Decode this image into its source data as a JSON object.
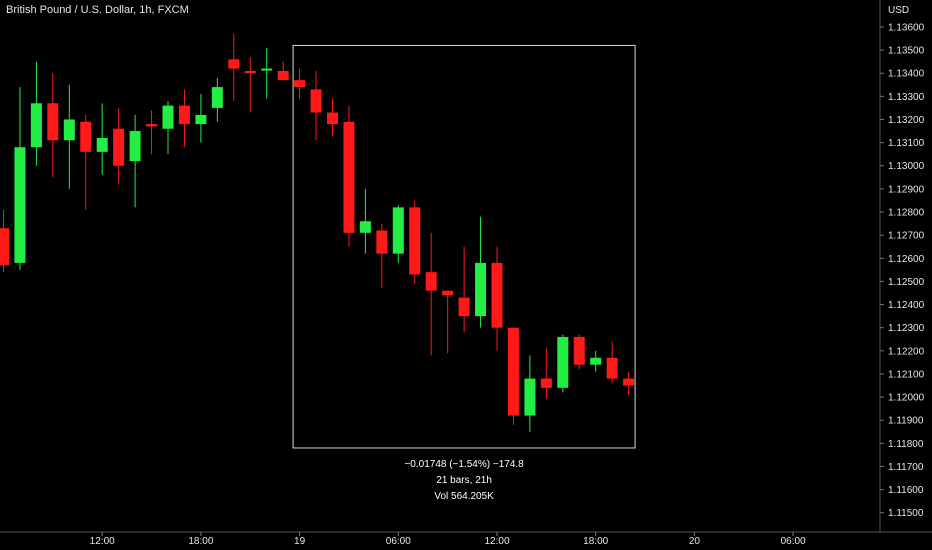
{
  "chart_title": "British Pound / U.S. Dollar, 1h, FXCM",
  "chart_data": {
    "type": "candlestick",
    "title": "British Pound / U.S. Dollar, 1h, FXCM",
    "currency_label": "USD",
    "colors": {
      "up": "#22ee44",
      "down": "#ff1a1a",
      "background": "#000000",
      "text": "#e6e6e6",
      "box": "#d9d9d9"
    },
    "y_ticks": [
      "1.13600",
      "1.13500",
      "1.13400",
      "1.13300",
      "1.13200",
      "1.13100",
      "1.13000",
      "1.12900",
      "1.12800",
      "1.12700",
      "1.12600",
      "1.12500",
      "1.12400",
      "1.12300",
      "1.12200",
      "1.12100",
      "1.12000",
      "1.11900",
      "1.11800",
      "1.11700",
      "1.11600",
      "1.11500"
    ],
    "ylim": [
      1.1146,
      1.1363
    ],
    "x_ticks": [
      {
        "label": "12:00",
        "index": 6
      },
      {
        "label": "18:00",
        "index": 12
      },
      {
        "label": "19",
        "index": 18
      },
      {
        "label": "06:00",
        "index": 24
      },
      {
        "label": "12:00",
        "index": 30
      },
      {
        "label": "18:00",
        "index": 36
      },
      {
        "label": "20",
        "index": 42
      },
      {
        "label": "06:00",
        "index": 48
      }
    ],
    "candles": [
      {
        "o": 1.1273,
        "h": 1.1281,
        "l": 1.1254,
        "c": 1.1257
      },
      {
        "o": 1.1258,
        "h": 1.1334,
        "l": 1.1255,
        "c": 1.1308
      },
      {
        "o": 1.1308,
        "h": 1.1345,
        "l": 1.13,
        "c": 1.1327
      },
      {
        "o": 1.1327,
        "h": 1.134,
        "l": 1.1295,
        "c": 1.1311
      },
      {
        "o": 1.1311,
        "h": 1.1335,
        "l": 1.129,
        "c": 1.132
      },
      {
        "o": 1.1319,
        "h": 1.1322,
        "l": 1.1281,
        "c": 1.1306
      },
      {
        "o": 1.1306,
        "h": 1.1327,
        "l": 1.1296,
        "c": 1.1312
      },
      {
        "o": 1.1316,
        "h": 1.1325,
        "l": 1.1292,
        "c": 1.13
      },
      {
        "o": 1.1302,
        "h": 1.1322,
        "l": 1.1282,
        "c": 1.1315
      },
      {
        "o": 1.1318,
        "h": 1.1324,
        "l": 1.1305,
        "c": 1.1317
      },
      {
        "o": 1.1316,
        "h": 1.1328,
        "l": 1.1305,
        "c": 1.1326
      },
      {
        "o": 1.1326,
        "h": 1.1333,
        "l": 1.1308,
        "c": 1.1318
      },
      {
        "o": 1.1318,
        "h": 1.1331,
        "l": 1.131,
        "c": 1.1322
      },
      {
        "o": 1.1325,
        "h": 1.1338,
        "l": 1.1319,
        "c": 1.1334
      },
      {
        "o": 1.1346,
        "h": 1.1357,
        "l": 1.1328,
        "c": 1.1342
      },
      {
        "o": 1.1341,
        "h": 1.1347,
        "l": 1.1323,
        "c": 1.134
      },
      {
        "o": 1.1342,
        "h": 1.1351,
        "l": 1.1329,
        "c": 1.1342
      },
      {
        "o": 1.1341,
        "h": 1.1345,
        "l": 1.1337,
        "c": 1.1337
      },
      {
        "o": 1.1337,
        "h": 1.1342,
        "l": 1.1329,
        "c": 1.1334
      },
      {
        "o": 1.1333,
        "h": 1.1341,
        "l": 1.1311,
        "c": 1.1323
      },
      {
        "o": 1.1323,
        "h": 1.1329,
        "l": 1.1313,
        "c": 1.1318
      },
      {
        "o": 1.1319,
        "h": 1.1326,
        "l": 1.1265,
        "c": 1.1271
      },
      {
        "o": 1.1271,
        "h": 1.129,
        "l": 1.1262,
        "c": 1.1276
      },
      {
        "o": 1.1272,
        "h": 1.1275,
        "l": 1.1247,
        "c": 1.1262
      },
      {
        "o": 1.1262,
        "h": 1.1283,
        "l": 1.1258,
        "c": 1.1282
      },
      {
        "o": 1.1282,
        "h": 1.1285,
        "l": 1.1249,
        "c": 1.1253
      },
      {
        "o": 1.1254,
        "h": 1.1271,
        "l": 1.1218,
        "c": 1.1246
      },
      {
        "o": 1.1246,
        "h": 1.1246,
        "l": 1.1219,
        "c": 1.1244
      },
      {
        "o": 1.1243,
        "h": 1.1265,
        "l": 1.1228,
        "c": 1.1235
      },
      {
        "o": 1.1235,
        "h": 1.1278,
        "l": 1.123,
        "c": 1.1258
      },
      {
        "o": 1.1258,
        "h": 1.1265,
        "l": 1.122,
        "c": 1.123
      },
      {
        "o": 1.123,
        "h": 1.123,
        "l": 1.1188,
        "c": 1.1192
      },
      {
        "o": 1.1192,
        "h": 1.1218,
        "l": 1.1185,
        "c": 1.1208
      },
      {
        "o": 1.1208,
        "h": 1.1221,
        "l": 1.1199,
        "c": 1.1204
      },
      {
        "o": 1.1204,
        "h": 1.1227,
        "l": 1.1202,
        "c": 1.1226
      },
      {
        "o": 1.1226,
        "h": 1.1227,
        "l": 1.1212,
        "c": 1.1214
      },
      {
        "o": 1.1214,
        "h": 1.122,
        "l": 1.1211,
        "c": 1.1217
      },
      {
        "o": 1.1217,
        "h": 1.1224,
        "l": 1.1206,
        "c": 1.1208
      },
      {
        "o": 1.1208,
        "h": 1.1211,
        "l": 1.1201,
        "c": 1.1205
      }
    ],
    "range_box": {
      "start_index": 18,
      "end_index": 38,
      "high": 1.1352,
      "low": 1.1178,
      "change": "−0.01748 (−1.54%) −174.8",
      "bars": "21 bars, 21h",
      "volume": "Vol 564.205K"
    }
  }
}
